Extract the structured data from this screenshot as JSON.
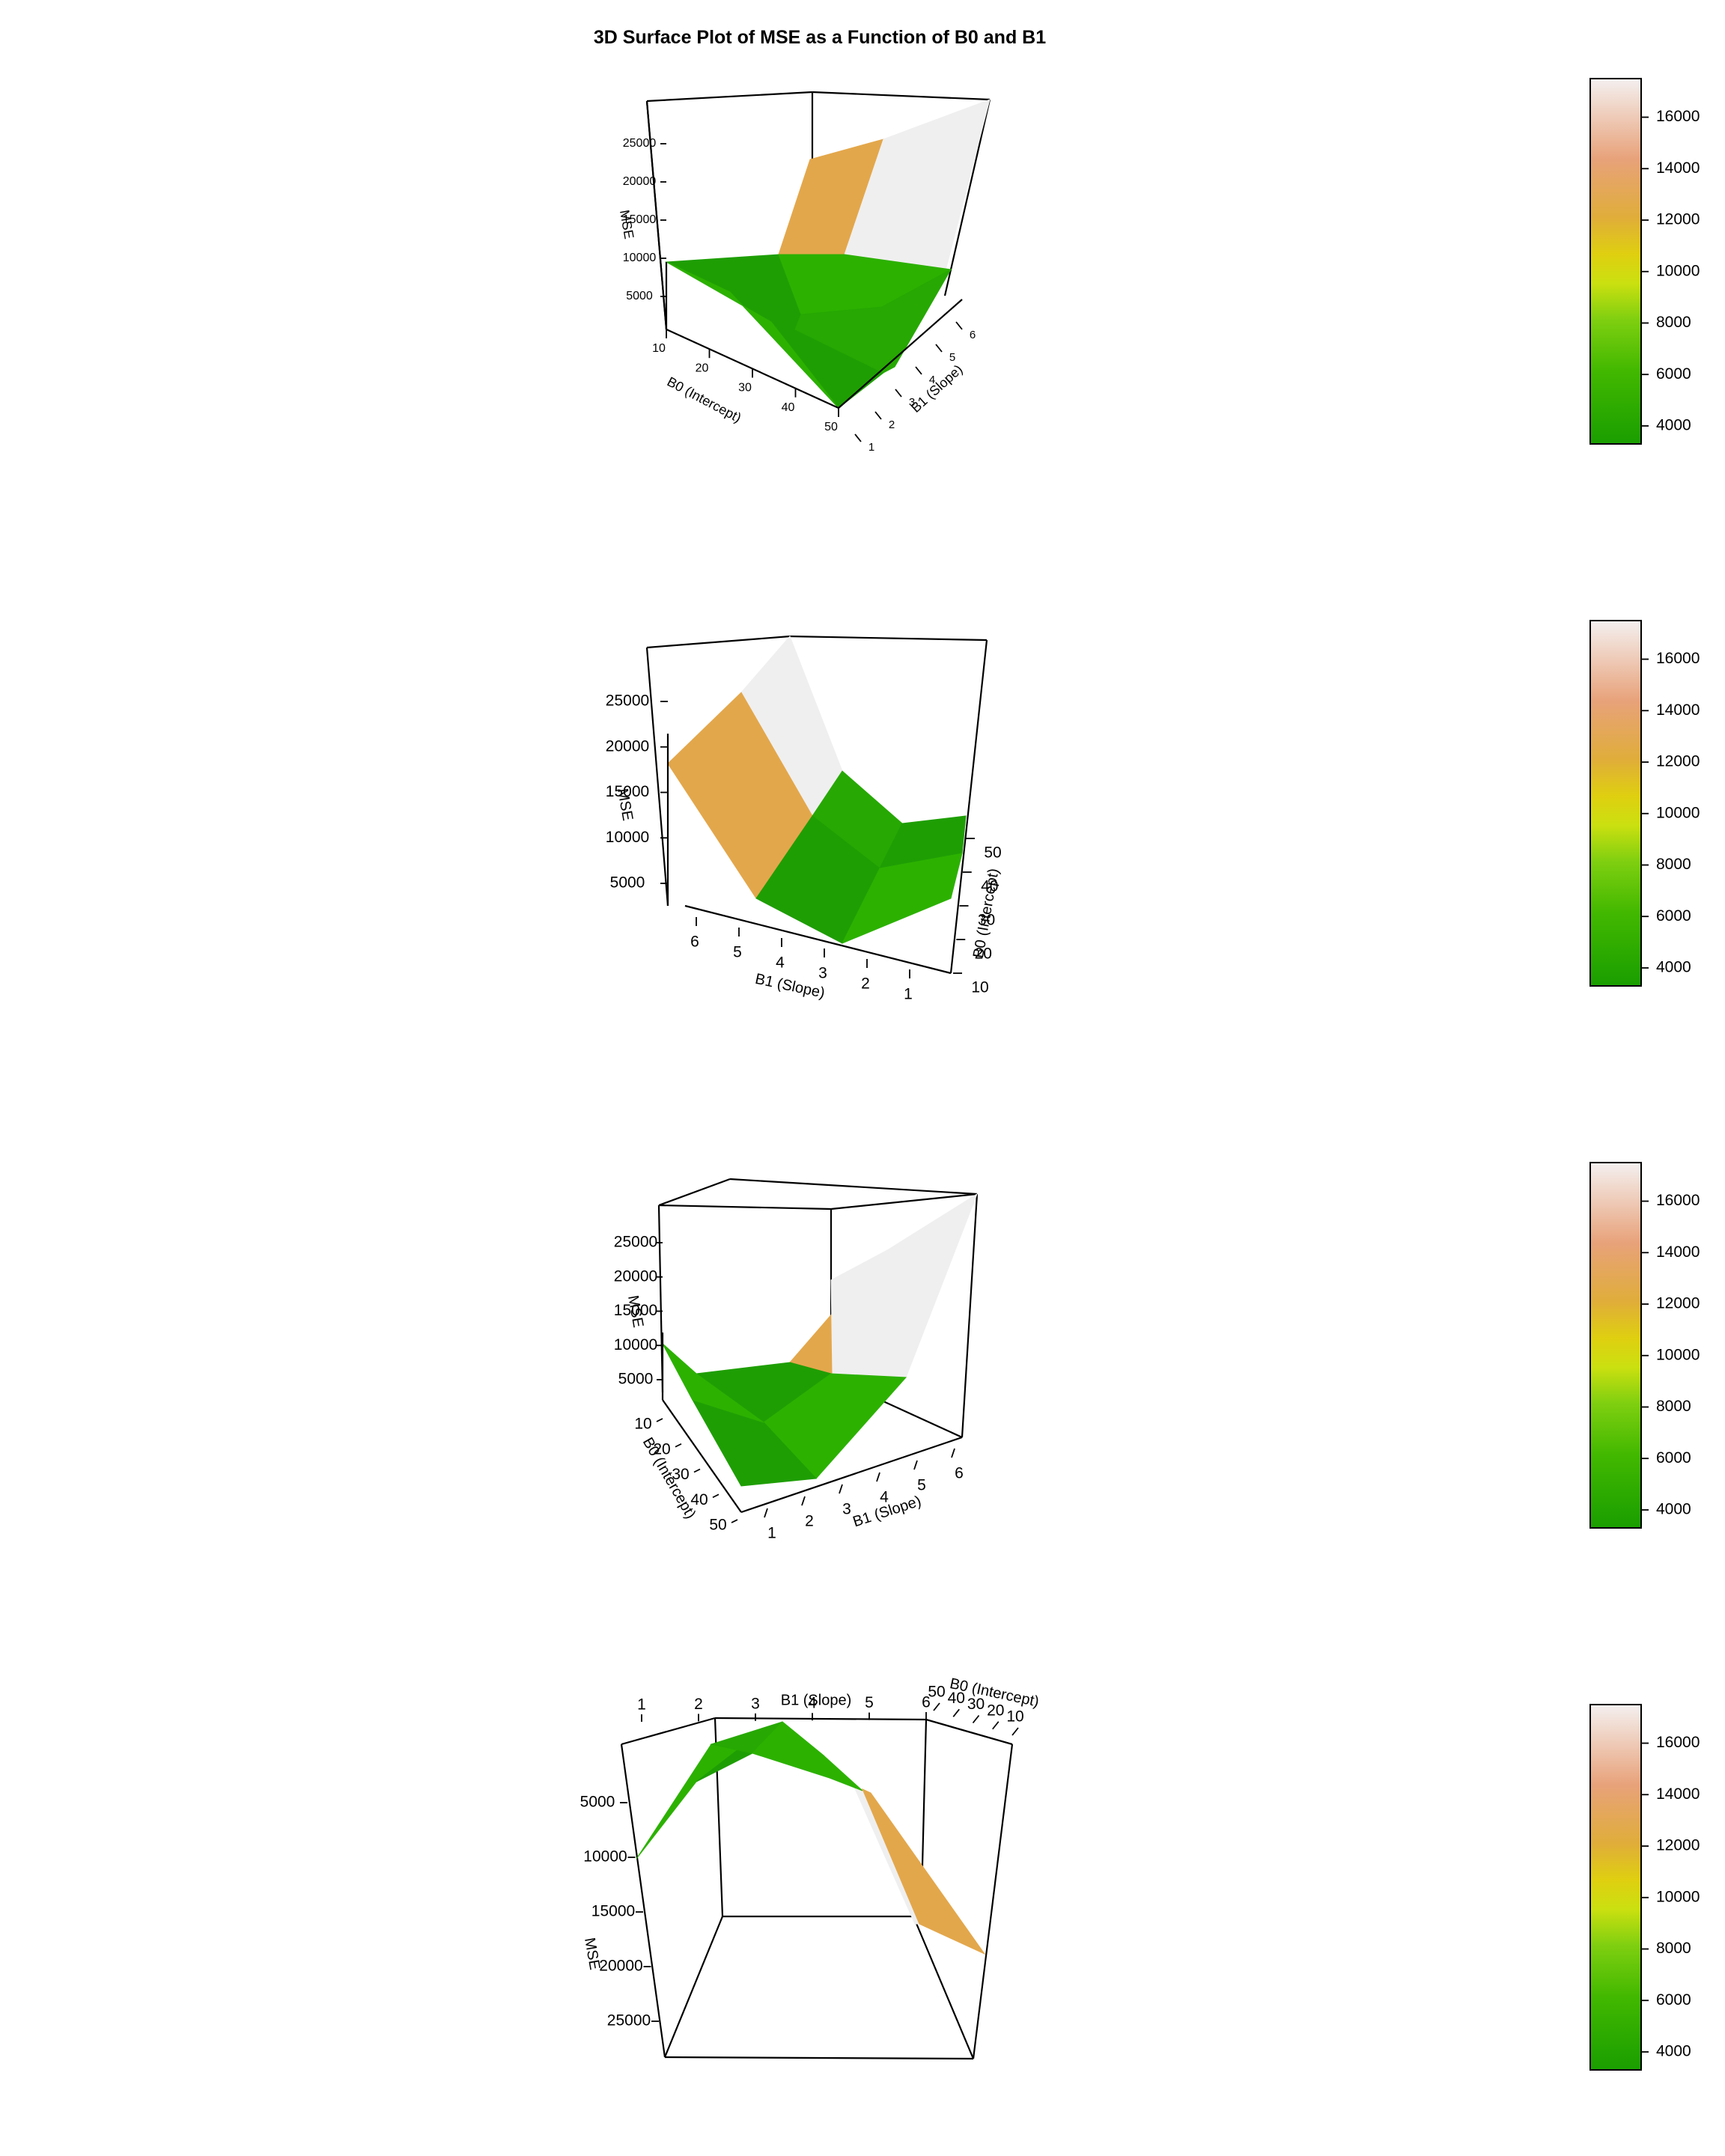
{
  "title": "3D Surface Plot of MSE as a Function of B0 and B1",
  "colors": {
    "scale_low": "#1a9e00",
    "scale_mid_green": "#56c322",
    "scale_yellow": "#d5d800",
    "scale_orange": "#e3a74a",
    "scale_high": "#f2f2f2",
    "axis": "#000000"
  },
  "chart_data": [
    {
      "type": "surface3d",
      "view": "front-left",
      "xlabel": "B0 (Intercept)",
      "ylabel": "B1 (Slope)",
      "zlabel": "MSE",
      "x_ticks": [
        "10",
        "20",
        "30",
        "40",
        "50"
      ],
      "y_ticks": [
        "1",
        "2",
        "3",
        "4",
        "5",
        "6"
      ],
      "z_ticks": [
        "5000",
        "10000",
        "15000",
        "20000",
        "25000"
      ],
      "colorbar_ticks": [
        "4000",
        "6000",
        "8000",
        "10000",
        "12000",
        "14000",
        "16000"
      ],
      "colorbar_range": [
        3300,
        17500
      ],
      "b0": [
        10,
        30,
        50
      ],
      "b1": [
        1,
        3.5,
        6
      ],
      "mse": [
        [
          10000,
          3500,
          27000
        ],
        [
          7000,
          4500,
          24000
        ],
        [
          6000,
          5000,
          28000
        ]
      ]
    },
    {
      "type": "surface3d",
      "view": "rotated",
      "xlabel": "B1 (Slope)",
      "ylabel": "B0 (Intercept)",
      "zlabel": "MSE",
      "x_ticks": [
        "6",
        "5",
        "4",
        "3",
        "2",
        "1"
      ],
      "y_ticks": [
        "10",
        "20",
        "30",
        "40",
        "50"
      ],
      "z_ticks": [
        "5000",
        "10000",
        "15000",
        "20000",
        "25000"
      ],
      "colorbar_ticks": [
        "4000",
        "6000",
        "8000",
        "10000",
        "12000",
        "14000",
        "16000"
      ],
      "colorbar_range": [
        3300,
        17500
      ]
    },
    {
      "type": "surface3d",
      "view": "front",
      "xlabel": "B0 (Intercept)",
      "ylabel": "B1 (Slope)",
      "zlabel": "MSE",
      "x_ticks": [
        "10",
        "20",
        "30",
        "40",
        "50"
      ],
      "y_ticks": [
        "1",
        "2",
        "3",
        "4",
        "5",
        "6"
      ],
      "z_ticks": [
        "5000",
        "10000",
        "15000",
        "20000",
        "25000"
      ],
      "z_ticks_visible": [
        "5000",
        "10000",
        "15000",
        "20000",
        "25000"
      ],
      "colorbar_ticks": [
        "4000",
        "6000",
        "8000",
        "10000",
        "12000",
        "14000",
        "16000"
      ],
      "colorbar_range": [
        3300,
        17500
      ]
    },
    {
      "type": "surface3d",
      "view": "from-below",
      "xlabel": "B1 (Slope)",
      "ylabel": "B0 (Intercept)",
      "zlabel": "MSE",
      "x_ticks": [
        "1",
        "2",
        "3",
        "4",
        "5",
        "6"
      ],
      "y_ticks": [
        "50",
        "40",
        "30",
        "20",
        "10"
      ],
      "z_ticks": [
        "5000",
        "10000",
        "15000",
        "20000",
        "25000"
      ],
      "colorbar_ticks": [
        "4000",
        "6000",
        "8000",
        "10000",
        "12000",
        "14000",
        "16000"
      ],
      "colorbar_range": [
        3300,
        17500
      ]
    }
  ]
}
